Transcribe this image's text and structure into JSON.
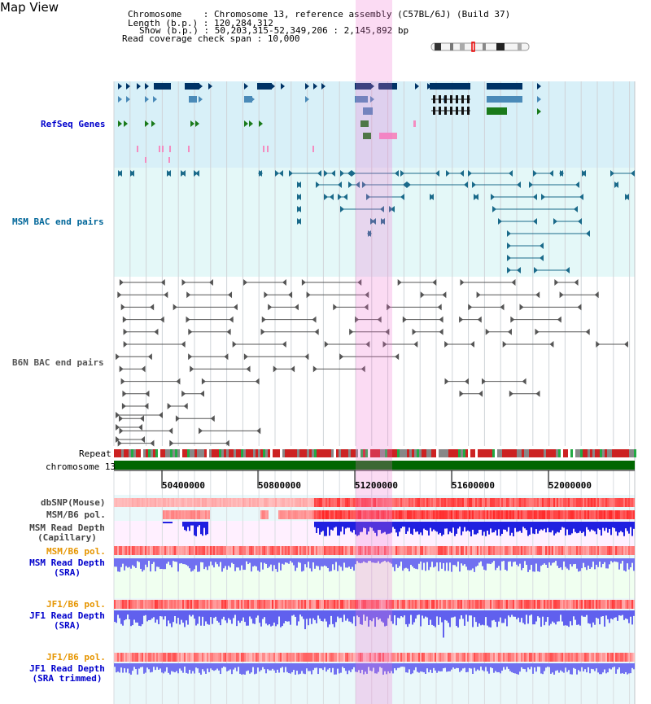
{
  "header": {
    "title": "Map View",
    "chromosome_label": "Chromosome    : ",
    "chromosome_value": "Chromosome 13, reference assembly (C57BL/6J) (Build 37)",
    "length_label": "Length (b.p.) : ",
    "length_value": "120,284,312",
    "show_label": "Show (b.p.) : ",
    "show_value": "50,203,315-52,349,206 : 2,145,892 bp",
    "span_label": "Read coverage check span : ",
    "span_value": "10,000"
  },
  "tracks": {
    "refseq": "RefSeq Genes",
    "msm_bac": "MSM BAC end pairs",
    "b6n_bac": "B6N BAC end pairs",
    "repeat": "Repeat",
    "chromosome": "chromosome 13",
    "dbsnp": "dbSNP(Mouse)",
    "msm_b6_pol_1": "MSM/B6 pol.",
    "msm_read_depth_cap_1": "MSM Read Depth",
    "msm_read_depth_cap_2": "(Capillary)",
    "msm_b6_pol_2": "MSM/B6 pol.",
    "msm_read_depth_sra_1": "MSM Read Depth",
    "msm_read_depth_sra_2": "(SRA)",
    "jf1_b6_pol_1": "JF1/B6 pol.",
    "jf1_read_depth_sra_1": "JF1 Read Depth",
    "jf1_read_depth_sra_2": "(SRA)",
    "jf1_b6_pol_2": "JF1/B6 pol.",
    "jf1_read_depth_trim_1": "JF1 Read Depth",
    "jf1_read_depth_trim_2": "(SRA trimmed)"
  },
  "axis": {
    "ticks": [
      "50400000",
      "50800000",
      "51200000",
      "51600000",
      "52000000"
    ]
  },
  "colors": {
    "refseq_label": "#0000cc",
    "msm_label": "#006699",
    "orange_label": "#e69500",
    "gray_label": "#333333",
    "highlight": "#f8d0f0"
  }
}
